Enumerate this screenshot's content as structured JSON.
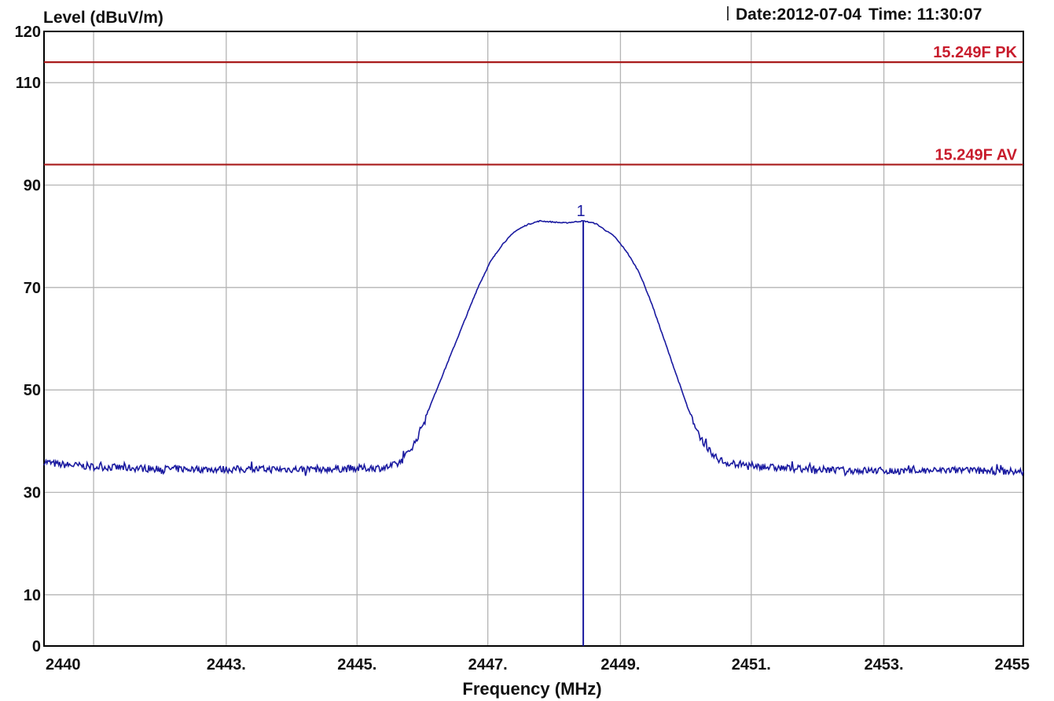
{
  "header": {
    "ylabel": "Level (dBuV/m)",
    "date_label": "Date:",
    "date_value": "2012-07-04",
    "time_label": "Time:",
    "time_value": "11:30:07"
  },
  "colors": {
    "trace": "#1a1aa0",
    "limit": "#a81a1a",
    "limit_text": "#c81c2c",
    "grid": "#b4b4b4",
    "axis": "#000000"
  },
  "chart_data": {
    "type": "line",
    "xlabel": "Frequency (MHz)",
    "ylabel": "Level (dBuV/m)",
    "xlim": [
      2439.2,
      2455
    ],
    "ylim": [
      0,
      120
    ],
    "grid": true,
    "x_ticks": [
      {
        "value": 2440,
        "label": "2440"
      },
      {
        "value": 2442.14,
        "label": "2443."
      },
      {
        "value": 2444.25,
        "label": "2445."
      },
      {
        "value": 2446.36,
        "label": "2447."
      },
      {
        "value": 2448.5,
        "label": "2449."
      },
      {
        "value": 2450.61,
        "label": "2451."
      },
      {
        "value": 2452.75,
        "label": "2453."
      },
      {
        "value": 2455,
        "label": "2455"
      }
    ],
    "y_ticks": [
      {
        "value": 120,
        "label": "120"
      },
      {
        "value": 110,
        "label": "110"
      },
      {
        "value": 90,
        "label": "90"
      },
      {
        "value": 70,
        "label": "70"
      },
      {
        "value": 50,
        "label": "50"
      },
      {
        "value": 30,
        "label": "30"
      },
      {
        "value": 10,
        "label": "10"
      },
      {
        "value": 0,
        "label": "0"
      }
    ],
    "y_grid": [
      0,
      10,
      30,
      50,
      70,
      90,
      110,
      120
    ],
    "limit_lines": [
      {
        "name": "15.249F PK",
        "y": 114
      },
      {
        "name": "15.249F AV",
        "y": 94
      }
    ],
    "marker": {
      "label": "1",
      "x": 2447.9,
      "y": 83
    },
    "series": [
      {
        "noise": 0.7,
        "points": [
          [
            2439.2,
            36.0
          ],
          [
            2439.4,
            35.5
          ],
          [
            2440.0,
            35.0
          ],
          [
            2441.0,
            34.6
          ],
          [
            2442.0,
            34.5
          ],
          [
            2443.0,
            34.5
          ],
          [
            2444.0,
            34.6
          ],
          [
            2444.7,
            34.8
          ],
          [
            2444.9,
            35.5
          ],
          [
            2445.0,
            36.5
          ],
          [
            2445.2,
            40.0
          ],
          [
            2445.4,
            46.0
          ],
          [
            2445.6,
            52.0
          ],
          [
            2445.8,
            58.0
          ],
          [
            2446.0,
            64.0
          ],
          [
            2446.2,
            70.0
          ],
          [
            2446.4,
            75.0
          ],
          [
            2446.6,
            78.5
          ],
          [
            2446.8,
            81.0
          ],
          [
            2447.0,
            82.3
          ],
          [
            2447.2,
            83.0
          ],
          [
            2447.4,
            82.8
          ],
          [
            2447.6,
            82.6
          ],
          [
            2447.9,
            83.0
          ],
          [
            2448.1,
            82.5
          ],
          [
            2448.4,
            80.0
          ],
          [
            2448.6,
            77.0
          ],
          [
            2448.8,
            73.0
          ],
          [
            2449.0,
            67.0
          ],
          [
            2449.2,
            60.0
          ],
          [
            2449.4,
            53.0
          ],
          [
            2449.6,
            46.0
          ],
          [
            2449.8,
            40.5
          ],
          [
            2450.0,
            37.0
          ],
          [
            2450.2,
            35.8
          ],
          [
            2450.6,
            35.2
          ],
          [
            2451.0,
            34.8
          ],
          [
            2452.0,
            34.3
          ],
          [
            2453.0,
            34.2
          ],
          [
            2454.0,
            34.3
          ],
          [
            2455.0,
            34.0
          ]
        ]
      }
    ]
  }
}
